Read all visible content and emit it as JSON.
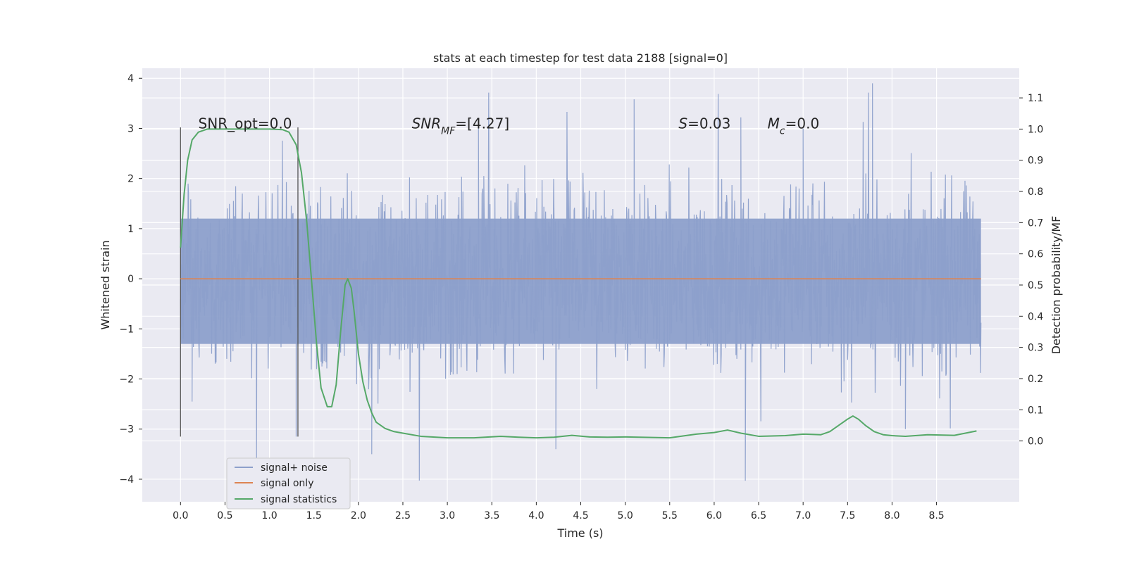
{
  "chart_data": {
    "type": "line",
    "title": "stats at each timestep for test data 2188 [signal=0]",
    "xlabel": "Time (s)",
    "ylabel": "Whitened strain",
    "y2label": "Detection probability/MF",
    "xlim": [
      -0.43,
      9.43
    ],
    "ylim": [
      -4.45,
      4.2
    ],
    "y2lim": [
      -0.195,
      1.195
    ],
    "xticks": [
      "0.0",
      "0.5",
      "1.0",
      "1.5",
      "2.0",
      "2.5",
      "3.0",
      "3.5",
      "4.0",
      "4.5",
      "5.0",
      "5.5",
      "6.0",
      "6.5",
      "7.0",
      "7.5",
      "8.0",
      "8.5"
    ],
    "yticks": [
      "4",
      "3",
      "2",
      "1",
      "0",
      "−1",
      "−2",
      "−3",
      "−4"
    ],
    "y2ticks": [
      "1.1",
      "1.0",
      "0.9",
      "0.8",
      "0.7",
      "0.6",
      "0.5",
      "0.4",
      "0.3",
      "0.2",
      "0.1",
      "0.0"
    ],
    "grid": true,
    "legend_position": "lower-left",
    "annotations": [
      {
        "text": "SNR_opt=0.0",
        "x": 0.2,
        "y": 3.0
      },
      {
        "text": "SNR",
        "sub": "MF",
        "tail": "=[4.27]",
        "x": 2.6,
        "y": 3.0
      },
      {
        "text": "S",
        "tail": "=0.03",
        "x": 5.6,
        "y": 3.0
      },
      {
        "text": "M",
        "sub": "c",
        "tail": "=0.0",
        "x": 6.6,
        "y": 3.0
      }
    ],
    "vlines": {
      "x": [
        0.0,
        1.32
      ],
      "y": [
        -3.15,
        3.02
      ],
      "color": "#555555"
    },
    "series": [
      {
        "name": "signal+ noise",
        "color": "#8da0cb",
        "style": "noise",
        "x_range": [
          0.0,
          9.0
        ],
        "typical_extent": [
          -1.3,
          1.2
        ],
        "peaks_high": [
          [
            3.35,
            3.0
          ],
          [
            5.1,
            3.58
          ],
          [
            6.3,
            3.22
          ],
          [
            7.0,
            3.0
          ],
          [
            7.78,
            3.9
          ]
        ],
        "peaks_low": [
          [
            0.13,
            -2.45
          ],
          [
            1.3,
            -3.15
          ],
          [
            2.15,
            -3.5
          ],
          [
            4.22,
            -3.4
          ],
          [
            6.35,
            -4.03
          ],
          [
            8.15,
            -3.0
          ]
        ]
      },
      {
        "name": "signal only",
        "color": "#dd8452",
        "x": [
          0.0,
          9.0
        ],
        "values": [
          0.0,
          0.0
        ]
      },
      {
        "name": "signal statistics",
        "color": "#55a868",
        "axis": "right",
        "x": [
          0.0,
          0.04,
          0.08,
          0.13,
          0.2,
          0.3,
          0.5,
          0.8,
          1.0,
          1.15,
          1.22,
          1.3,
          1.36,
          1.42,
          1.48,
          1.53,
          1.58,
          1.65,
          1.7,
          1.75,
          1.8,
          1.85,
          1.88,
          1.92,
          1.95,
          2.0,
          2.05,
          2.1,
          2.15,
          2.2,
          2.3,
          2.4,
          2.5,
          2.7,
          3.0,
          3.3,
          3.6,
          3.8,
          4.0,
          4.2,
          4.4,
          4.6,
          4.8,
          5.0,
          5.5,
          5.8,
          6.0,
          6.15,
          6.3,
          6.5,
          6.8,
          7.0,
          7.2,
          7.3,
          7.4,
          7.5,
          7.56,
          7.62,
          7.7,
          7.8,
          7.9,
          8.0,
          8.15,
          8.4,
          8.7,
          8.95
        ],
        "values": [
          0.62,
          0.79,
          0.9,
          0.965,
          0.99,
          1.0,
          1.0,
          1.0,
          1.0,
          0.998,
          0.99,
          0.95,
          0.86,
          0.7,
          0.49,
          0.31,
          0.17,
          0.11,
          0.11,
          0.18,
          0.35,
          0.5,
          0.52,
          0.49,
          0.42,
          0.28,
          0.19,
          0.13,
          0.09,
          0.06,
          0.04,
          0.03,
          0.025,
          0.015,
          0.01,
          0.01,
          0.015,
          0.012,
          0.01,
          0.012,
          0.018,
          0.013,
          0.012,
          0.013,
          0.01,
          0.022,
          0.027,
          0.035,
          0.025,
          0.015,
          0.017,
          0.022,
          0.02,
          0.03,
          0.05,
          0.07,
          0.08,
          0.07,
          0.05,
          0.03,
          0.02,
          0.017,
          0.015,
          0.02,
          0.018,
          0.032
        ]
      }
    ]
  }
}
